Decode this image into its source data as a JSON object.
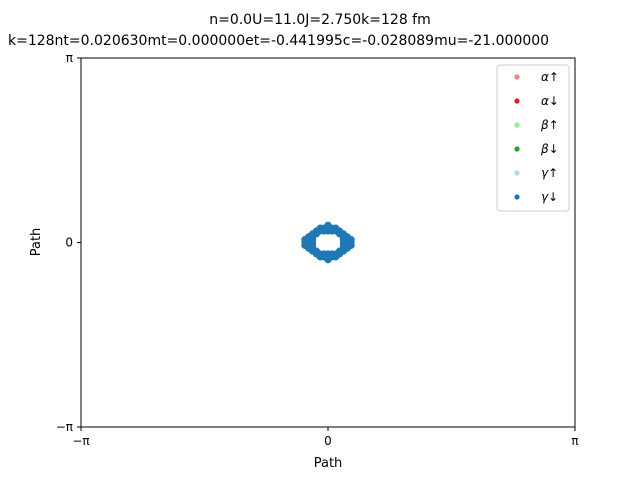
{
  "chart_data": {
    "type": "scatter",
    "title": "n=0.0U=11.0J=2.750k=128 fm",
    "subtitle": "k=128nt=0.020630mt=0.000000et=-0.441995c=-0.028089mu=-21.000000",
    "xlabel": "Path",
    "ylabel": "Path",
    "xlim": [
      -3.14159,
      3.14159
    ],
    "ylim": [
      -3.14159,
      3.14159
    ],
    "x_ticks": [
      {
        "value": -3.14159,
        "label": "−π"
      },
      {
        "value": 0,
        "label": "0"
      },
      {
        "value": 3.14159,
        "label": "π"
      }
    ],
    "y_ticks": [
      {
        "value": -3.14159,
        "label": "−π"
      },
      {
        "value": 0,
        "label": "0"
      },
      {
        "value": 3.14159,
        "label": "π"
      }
    ],
    "grid": false,
    "legend_position": "top-right",
    "series": [
      {
        "name": "α↑",
        "color": "#f08080",
        "points": []
      },
      {
        "name": "α↓",
        "color": "#e41a1c",
        "points": []
      },
      {
        "name": "β↑",
        "color": "#90ee90",
        "points": []
      },
      {
        "name": "β↓",
        "color": "#2ca02c",
        "points": []
      },
      {
        "name": "γ↑",
        "color": "#add8e6",
        "points": []
      },
      {
        "name": "γ↓",
        "color": "#1f77b4",
        "points": [
          [
            0.0,
            0.245
          ],
          [
            0.049,
            0.245
          ],
          [
            0.098,
            0.245
          ],
          [
            0.147,
            0.196
          ],
          [
            0.196,
            0.147
          ],
          [
            0.245,
            0.098
          ],
          [
            0.245,
            0.049
          ],
          [
            0.245,
            0.0
          ],
          [
            0.245,
            -0.049
          ],
          [
            0.245,
            -0.098
          ],
          [
            0.196,
            -0.147
          ],
          [
            0.147,
            -0.196
          ],
          [
            0.098,
            -0.245
          ],
          [
            0.049,
            -0.245
          ],
          [
            0.0,
            -0.245
          ],
          [
            -0.049,
            -0.245
          ],
          [
            -0.098,
            -0.245
          ],
          [
            -0.147,
            -0.196
          ],
          [
            -0.196,
            -0.147
          ],
          [
            -0.245,
            -0.098
          ],
          [
            -0.245,
            -0.049
          ],
          [
            -0.245,
            0.0
          ],
          [
            -0.245,
            0.049
          ],
          [
            -0.245,
            0.098
          ],
          [
            -0.196,
            0.147
          ],
          [
            -0.147,
            0.196
          ],
          [
            -0.098,
            0.245
          ],
          [
            -0.049,
            0.245
          ],
          [
            0.0,
            0.196
          ],
          [
            0.049,
            0.196
          ],
          [
            0.098,
            0.196
          ],
          [
            0.147,
            0.147
          ],
          [
            0.196,
            0.098
          ],
          [
            0.196,
            0.049
          ],
          [
            0.196,
            0.0
          ],
          [
            0.196,
            -0.049
          ],
          [
            0.196,
            -0.098
          ],
          [
            0.147,
            -0.147
          ],
          [
            0.098,
            -0.196
          ],
          [
            0.049,
            -0.196
          ],
          [
            0.0,
            -0.196
          ],
          [
            -0.049,
            -0.196
          ],
          [
            -0.098,
            -0.196
          ],
          [
            -0.147,
            -0.147
          ],
          [
            -0.196,
            -0.098
          ],
          [
            -0.196,
            -0.049
          ],
          [
            -0.196,
            0.0
          ],
          [
            -0.196,
            0.049
          ],
          [
            -0.196,
            0.098
          ],
          [
            -0.147,
            0.147
          ],
          [
            -0.098,
            0.196
          ],
          [
            -0.049,
            0.196
          ],
          [
            0.294,
            0.0
          ],
          [
            0.294,
            0.049
          ],
          [
            0.294,
            -0.049
          ],
          [
            -0.294,
            0.0
          ],
          [
            -0.294,
            0.049
          ],
          [
            -0.294,
            -0.049
          ],
          [
            0.0,
            0.294
          ],
          [
            0.0,
            -0.294
          ]
        ]
      }
    ]
  }
}
